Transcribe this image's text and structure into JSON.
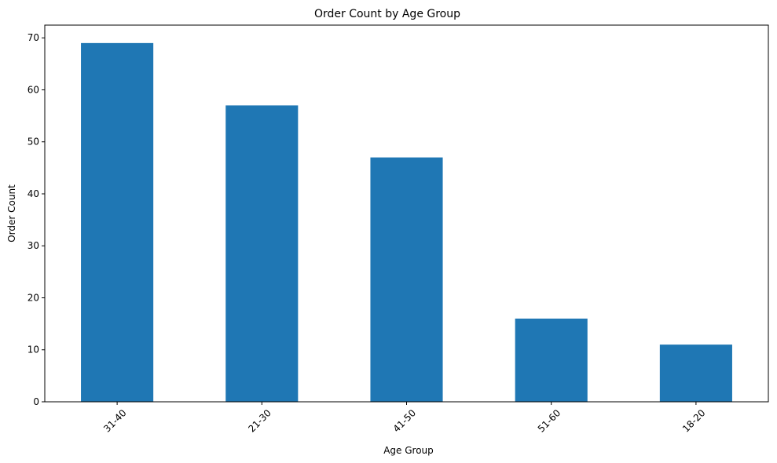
{
  "chart_data": {
    "type": "bar",
    "title": "Order Count by Age Group",
    "xlabel": "Age Group",
    "ylabel": "Order Count",
    "categories": [
      "31-40",
      "21-30",
      "41-50",
      "51-60",
      "18-20"
    ],
    "values": [
      69,
      57,
      47,
      16,
      11
    ],
    "ylim": [
      0,
      72.45
    ],
    "yticks": [
      "0",
      "10",
      "20",
      "30",
      "40",
      "50",
      "60",
      "70"
    ],
    "grid": false,
    "legend": "none",
    "bar_color": "#1f77b4",
    "xtick_rotation": 45
  }
}
